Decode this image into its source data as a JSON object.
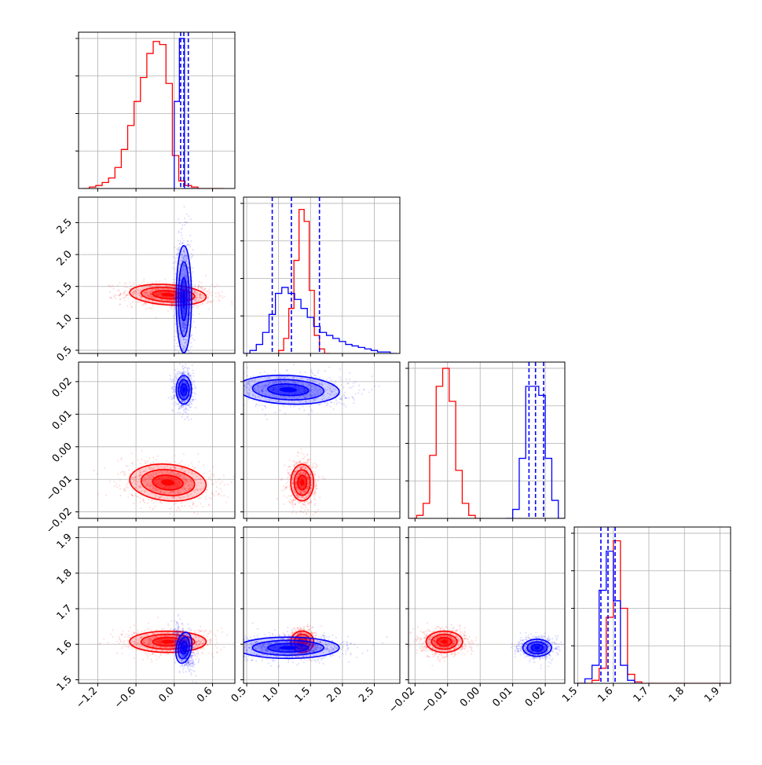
{
  "chart_data": {
    "type": "corner",
    "title": "",
    "colors": {
      "a": "#ff0000",
      "b": "#0000ff",
      "grid": "#b0b0b0"
    },
    "parameters": [
      {
        "range": [
          -1.5,
          0.95
        ],
        "ticks": [
          -1.2,
          -0.6,
          0.0,
          0.6
        ],
        "tick_labels": [
          "−1.2",
          "−0.6",
          "0.0",
          "0.6"
        ]
      },
      {
        "range": [
          0.45,
          2.9
        ],
        "ticks": [
          0.5,
          1.0,
          1.5,
          2.0,
          2.5
        ],
        "tick_labels": [
          "0.5",
          "1.0",
          "1.5",
          "2.0",
          "2.5"
        ]
      },
      {
        "range": [
          -0.022,
          0.026
        ],
        "ticks": [
          -0.02,
          -0.01,
          0.0,
          0.01,
          0.02
        ],
        "tick_labels": [
          "−0.02",
          "−0.01",
          "0.00",
          "0.01",
          "0.02"
        ]
      },
      {
        "range": [
          1.49,
          1.93
        ],
        "ticks": [
          1.5,
          1.6,
          1.7,
          1.8,
          1.9
        ],
        "tick_labels": [
          "1.5",
          "1.6",
          "1.7",
          "1.8",
          "1.9"
        ]
      }
    ],
    "series": [
      {
        "color_key": "a",
        "hist": [
          {
            "x": [
              -1.43,
              -1.33,
              -1.23,
              -1.13,
              -1.03,
              -0.93,
              -0.83,
              -0.73,
              -0.63,
              -0.53,
              -0.43,
              -0.33,
              -0.23,
              -0.13,
              -0.03,
              0.07,
              0.17,
              0.27,
              0.37,
              0.47,
              0.57,
              0.67
            ],
            "y": [
              0.0,
              0.01,
              0.02,
              0.04,
              0.07,
              0.14,
              0.26,
              0.42,
              0.58,
              0.74,
              0.9,
              0.98,
              0.96,
              0.7,
              0.22,
              0.05,
              0.02,
              0.01,
              0.0,
              0.0,
              0.0,
              0.0
            ]
          },
          {
            "x": [
              1.0,
              1.08,
              1.16,
              1.24,
              1.32,
              1.4,
              1.48,
              1.56,
              1.64,
              1.72
            ],
            "y": [
              0.02,
              0.1,
              0.3,
              0.62,
              0.96,
              0.88,
              0.42,
              0.12,
              0.03,
              0.0
            ]
          },
          {
            "x": [
              -0.0215,
              -0.0195,
              -0.0175,
              -0.0155,
              -0.0135,
              -0.0115,
              -0.0095,
              -0.0075,
              -0.0055,
              -0.0035,
              -0.0015
            ],
            "y": [
              0.0,
              0.02,
              0.1,
              0.42,
              0.88,
              1.0,
              0.78,
              0.32,
              0.1,
              0.02,
              0.0
            ]
          },
          {
            "x": [
              1.5,
              1.52,
              1.54,
              1.56,
              1.58,
              1.6,
              1.62,
              1.64,
              1.66,
              1.68,
              1.7,
              1.75,
              1.8,
              1.85,
              1.9
            ],
            "y": [
              0.0,
              0.0,
              0.02,
              0.1,
              0.44,
              0.95,
              0.5,
              0.06,
              0.01,
              0.0,
              0.0,
              0.0,
              0.0,
              0.0,
              0.0
            ]
          }
        ],
        "blobs": [
          {
            "i": 1,
            "j": 0,
            "mx": -0.1,
            "my": 1.37,
            "sx": 0.3,
            "sy": 0.08,
            "rho": -0.15
          },
          {
            "i": 2,
            "j": 0,
            "mx": -0.1,
            "my": -0.011,
            "sx": 0.3,
            "sy": 0.0028,
            "rho": -0.2
          },
          {
            "i": 2,
            "j": 1,
            "mx": 1.37,
            "my": -0.011,
            "sx": 0.09,
            "sy": 0.0028,
            "rho": 0.0
          },
          {
            "i": 3,
            "j": 0,
            "mx": -0.1,
            "my": 1.607,
            "sx": 0.3,
            "sy": 0.015,
            "rho": 0.0
          },
          {
            "i": 3,
            "j": 1,
            "mx": 1.37,
            "my": 1.607,
            "sx": 0.09,
            "sy": 0.015,
            "rho": 0.0
          },
          {
            "i": 3,
            "j": 2,
            "mx": -0.011,
            "my": 1.607,
            "sx": 0.0028,
            "sy": 0.015,
            "rho": 0.0
          }
        ]
      },
      {
        "color_key": "b",
        "hist": [
          {
            "x": [
              0.0,
              0.08,
              0.16,
              0.24,
              0.32
            ],
            "y": [
              0.58,
              1.0,
              0.0,
              0.0,
              0.0
            ]
          },
          {
            "x": [
              0.45,
              0.55,
              0.65,
              0.75,
              0.85,
              0.95,
              1.05,
              1.15,
              1.25,
              1.35,
              1.45,
              1.55,
              1.65,
              1.75,
              1.85,
              1.95,
              2.05,
              2.15,
              2.25,
              2.35,
              2.45,
              2.55,
              2.65,
              2.75
            ],
            "y": [
              0.0,
              0.02,
              0.06,
              0.14,
              0.26,
              0.4,
              0.44,
              0.4,
              0.36,
              0.3,
              0.24,
              0.18,
              0.14,
              0.12,
              0.1,
              0.08,
              0.06,
              0.05,
              0.04,
              0.03,
              0.02,
              0.01,
              0.01,
              0.0
            ]
          },
          {
            "x": [
              0.008,
              0.01,
              0.012,
              0.014,
              0.016,
              0.018,
              0.02,
              0.022,
              0.024
            ],
            "y": [
              0.0,
              0.06,
              0.4,
              0.88,
              0.88,
              0.82,
              0.4,
              0.12,
              0.0
            ]
          },
          {
            "x": [
              1.5,
              1.52,
              1.54,
              1.56,
              1.58,
              1.6,
              1.62,
              1.64,
              1.66
            ],
            "y": [
              0.0,
              0.03,
              0.12,
              0.62,
              0.88,
              0.55,
              0.12,
              0.02,
              0.0
            ]
          }
        ],
        "blobs": [
          {
            "i": 1,
            "j": 0,
            "mx": 0.15,
            "my": 1.3,
            "sx": 0.06,
            "sy": 0.42,
            "rho": 0.0
          },
          {
            "i": 2,
            "j": 0,
            "mx": 0.15,
            "my": 0.0175,
            "sx": 0.06,
            "sy": 0.0022,
            "rho": 0.0
          },
          {
            "i": 2,
            "j": 1,
            "mx": 1.15,
            "my": 0.0175,
            "sx": 0.4,
            "sy": 0.0022,
            "rho": -0.1
          },
          {
            "i": 3,
            "j": 0,
            "mx": 0.15,
            "my": 1.59,
            "sx": 0.06,
            "sy": 0.022,
            "rho": -0.4
          },
          {
            "i": 3,
            "j": 1,
            "mx": 1.15,
            "my": 1.59,
            "sx": 0.4,
            "sy": 0.015,
            "rho": 0.0
          },
          {
            "i": 3,
            "j": 2,
            "mx": 0.0175,
            "my": 1.59,
            "sx": 0.0022,
            "sy": 0.012,
            "rho": 0.0
          }
        ]
      }
    ],
    "quantile_lines": [
      {
        "param": 0,
        "values": [
          0.1,
          0.15,
          0.22
        ]
      },
      {
        "param": 1,
        "values": [
          0.9,
          1.2,
          1.64
        ]
      },
      {
        "param": 2,
        "values": [
          0.015,
          0.017,
          0.0195
        ]
      },
      {
        "param": 3,
        "values": [
          1.565,
          1.585,
          1.605
        ]
      }
    ]
  }
}
